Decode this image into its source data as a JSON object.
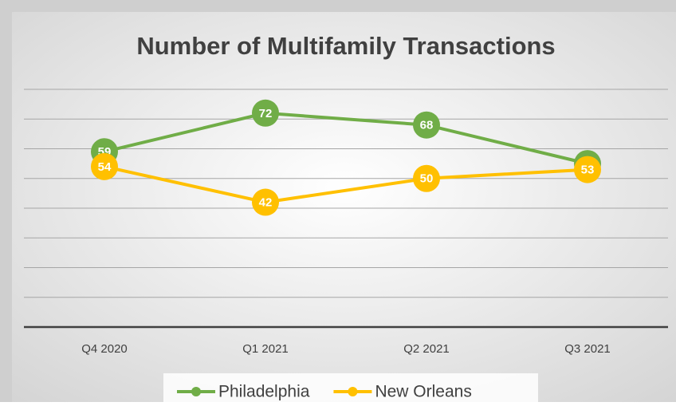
{
  "chart_data": {
    "type": "line",
    "title": "Number of Multifamily Transactions",
    "categories": [
      "Q4 2020",
      "Q1 2021",
      "Q2 2021",
      "Q3 2021"
    ],
    "series": [
      {
        "name": "Philadelphia",
        "color": "#70ad47",
        "values": [
          59,
          72,
          68,
          55
        ]
      },
      {
        "name": "New Orleans",
        "color": "#ffc000",
        "values": [
          54,
          42,
          50,
          53
        ]
      }
    ],
    "ylim": [
      0,
      80
    ],
    "yticks": [
      0,
      10,
      20,
      30,
      40,
      50,
      60,
      70,
      80
    ],
    "grid": true,
    "legend": "bottom"
  }
}
